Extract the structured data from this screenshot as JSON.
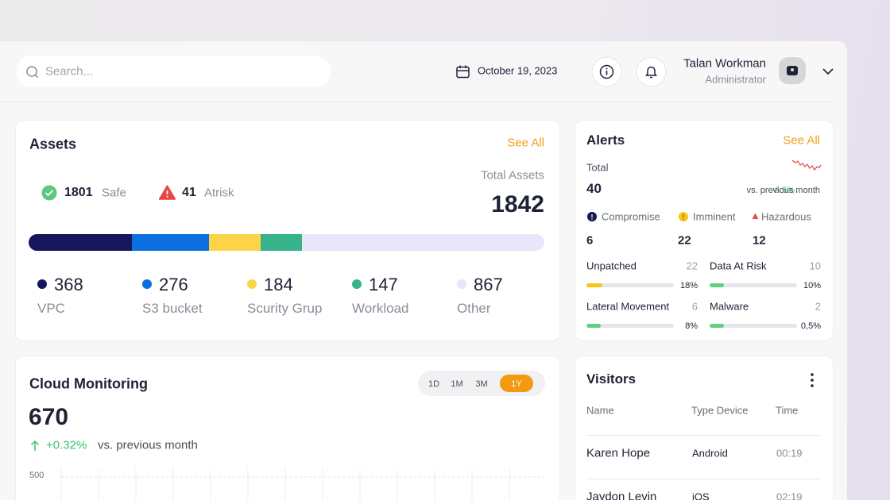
{
  "header": {
    "search_placeholder": "Search...",
    "date": "October 19, 2023",
    "user_name": "Talan Workman",
    "user_role": "Administrator"
  },
  "assets": {
    "title": "Assets",
    "see_all": "See All",
    "safe": {
      "value": 1801,
      "label": "Safe"
    },
    "at_risk": {
      "value": 41,
      "label": "Atrisk"
    },
    "total_label": "Total Assets",
    "total": 1842,
    "segments": [
      {
        "name": "VPC",
        "value": 368,
        "color": "#14175c"
      },
      {
        "name": "S3 bucket",
        "value": 276,
        "color": "#0b6fe0"
      },
      {
        "name": "Scurity Grup",
        "value": 184,
        "color": "#fdd447"
      },
      {
        "name": "Workload",
        "value": 147,
        "color": "#36b38a"
      },
      {
        "name": "Other",
        "value": 867,
        "color": "#e8e6f8"
      }
    ]
  },
  "alerts": {
    "title": "Alerts",
    "see_all": "See All",
    "total_label": "Total",
    "total": 40,
    "change": "-6.5%",
    "change_suffix": "vs. previous month",
    "categories": [
      {
        "name": "Compromise",
        "value": 6
      },
      {
        "name": "Imminent",
        "value": 22
      },
      {
        "name": "Hazardous",
        "value": 12
      }
    ],
    "metrics": [
      {
        "name": "Unpatched",
        "count": 22,
        "percent": {
          "value": 18,
          "label": "18%"
        },
        "color": "#f5c518"
      },
      {
        "name": "Data At Risk",
        "count": 10,
        "percent": {
          "value": 10,
          "label": "10%"
        },
        "color": "#5fcf80"
      },
      {
        "name": "Lateral Movement",
        "count": 6,
        "percent": {
          "value": 8,
          "label": "8%"
        },
        "color": "#5fcf80"
      },
      {
        "name": "Malware",
        "count": 2,
        "percent": {
          "value": 0.5,
          "label": "0,5%"
        },
        "color": "#5fcf80"
      }
    ]
  },
  "cloud_monitoring": {
    "title": "Cloud Monitoring",
    "ranges": [
      "1D",
      "1M",
      "3M",
      "1Y"
    ],
    "active_range_index": 3,
    "value": 670,
    "change": "+0.32%",
    "change_suffix": "vs. previous month",
    "yticks": [
      500
    ]
  },
  "visitors": {
    "title": "Visitors",
    "columns": [
      "Name",
      "Type Device",
      "Time"
    ],
    "rows": [
      [
        "Karen Hope",
        "Android",
        "00:19"
      ],
      [
        "Jaydon Levin",
        "iOS",
        "02:19"
      ]
    ]
  }
}
